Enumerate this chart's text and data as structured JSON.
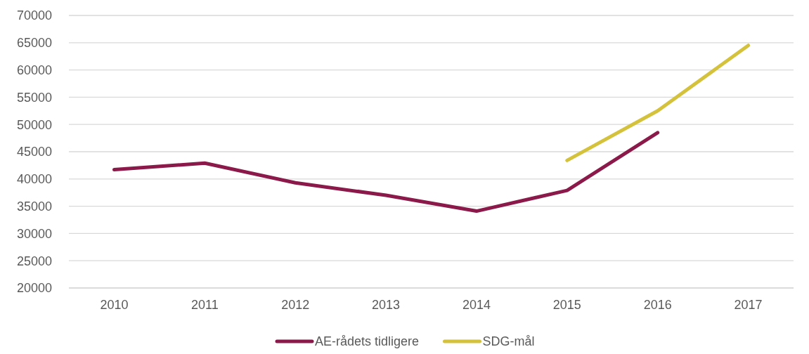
{
  "chart_data": {
    "type": "line",
    "categories": [
      "2010",
      "2011",
      "2012",
      "2013",
      "2014",
      "2015",
      "2016",
      "2017"
    ],
    "series": [
      {
        "name": "AE-rådets tidligere",
        "color": "#8b1a4a",
        "values": [
          41700,
          42900,
          39300,
          37000,
          34100,
          37900,
          48500,
          null
        ]
      },
      {
        "name": "SDG-mål",
        "color": "#d4c23c",
        "values": [
          null,
          null,
          null,
          null,
          null,
          43400,
          52500,
          64500
        ]
      }
    ],
    "ylim": [
      20000,
      70000
    ],
    "yticks": [
      20000,
      25000,
      30000,
      35000,
      40000,
      45000,
      50000,
      55000,
      60000,
      65000,
      70000
    ],
    "grid": "y",
    "legend": "bottom",
    "marker": "none",
    "line_style": "solid"
  }
}
